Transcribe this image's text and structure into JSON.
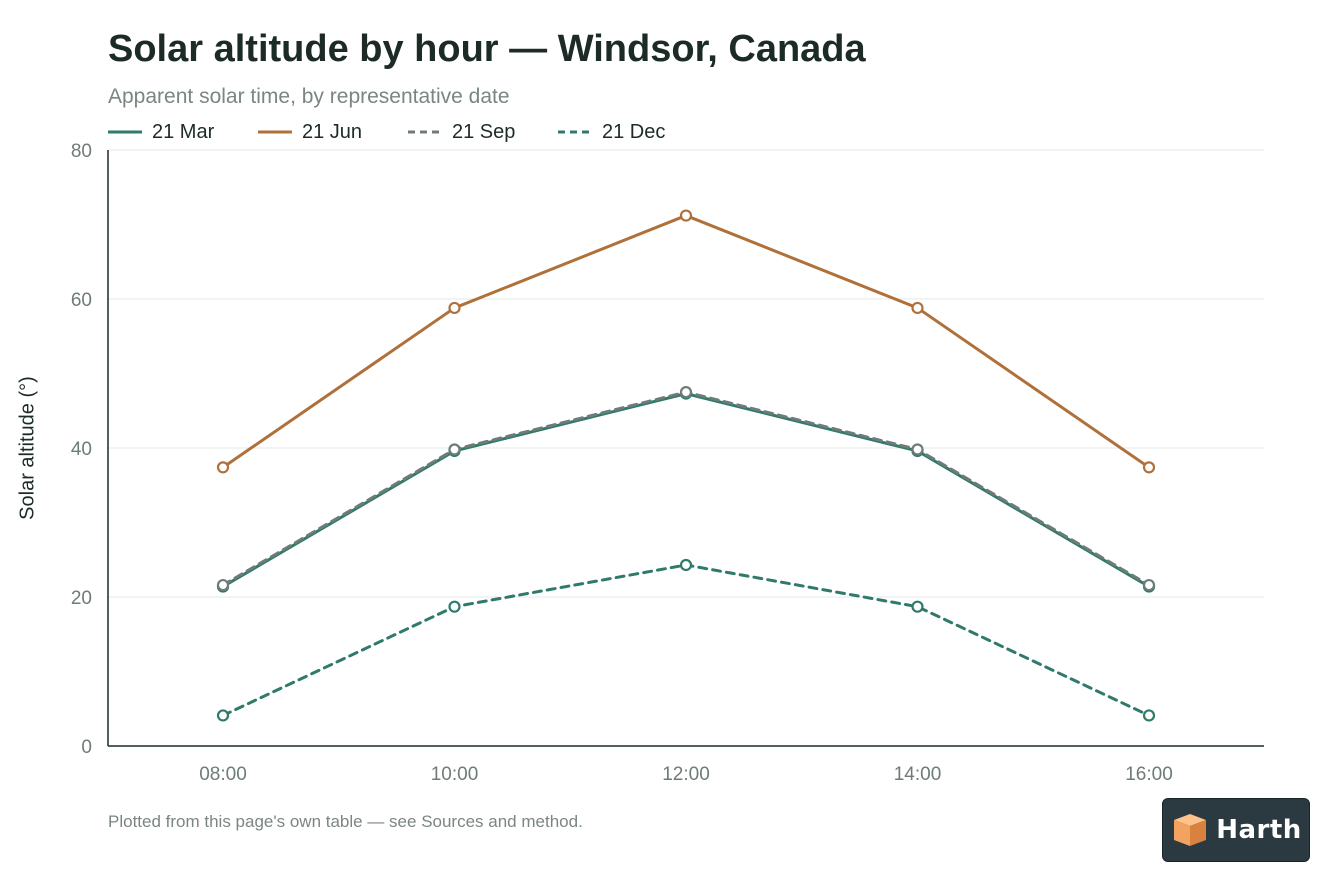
{
  "chart_data": {
    "type": "line",
    "title": "Solar altitude by hour — Windsor, Canada",
    "subtitle": "Apparent solar time, by representative date",
    "ylabel": "Solar altitude (°)",
    "xlabel": "",
    "categories": [
      "08:00",
      "10:00",
      "12:00",
      "14:00",
      "16:00"
    ],
    "ylim": [
      0,
      80
    ],
    "yticks": [
      0,
      20,
      40,
      60,
      80
    ],
    "grid": true,
    "legend_position": "top-left",
    "series": [
      {
        "name": "21 Mar",
        "values": [
          21.4,
          39.6,
          47.3,
          39.6,
          21.4
        ],
        "color": "#2f7a6a",
        "style": "solid"
      },
      {
        "name": "21 Jun",
        "values": [
          37.4,
          58.8,
          71.2,
          58.8,
          37.4
        ],
        "color": "#b0703a",
        "style": "solid"
      },
      {
        "name": "21 Sep",
        "values": [
          21.6,
          39.8,
          47.5,
          39.8,
          21.6
        ],
        "color": "#6e7b78",
        "style": "dashed"
      },
      {
        "name": "21 Dec",
        "values": [
          4.1,
          18.7,
          24.3,
          18.7,
          4.1
        ],
        "color": "#2f7a6a",
        "style": "dashed"
      }
    ]
  },
  "footnote": "Plotted from this page's own table — see Sources and method.",
  "logo": {
    "text": "Harth",
    "icon": "cube-icon",
    "accent": "#f4a261"
  }
}
